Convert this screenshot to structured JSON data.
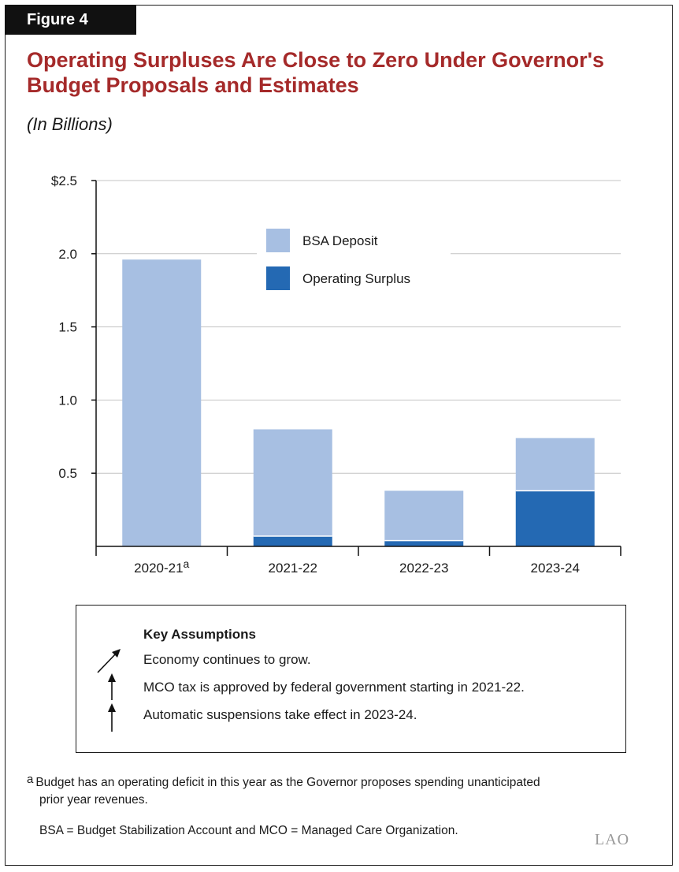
{
  "figure_label": "Figure 4",
  "title": "Operating Surpluses Are Close to Zero Under Governor's Budget Proposals and Estimates",
  "subtitle": "(In Billions)",
  "chart_data": {
    "type": "bar",
    "stacked": true,
    "categories": [
      "2020-21",
      "2021-22",
      "2022-23",
      "2023-24"
    ],
    "category_footnotes": [
      "a",
      "",
      "",
      ""
    ],
    "series": [
      {
        "name": "Operating Surplus",
        "color": "#2469b3",
        "values": [
          0,
          0.07,
          0.04,
          0.38
        ]
      },
      {
        "name": "BSA Deposit",
        "color": "#a7bfe2",
        "values": [
          1.96,
          0.73,
          0.34,
          0.36
        ]
      }
    ],
    "y_ticks": [
      "$2.5",
      "2.0",
      "1.5",
      "1.0",
      "0.5"
    ],
    "y_tick_values": [
      2.5,
      2.0,
      1.5,
      1.0,
      0.5
    ],
    "ylim": [
      0,
      2.5
    ],
    "grid": true,
    "legend_order": [
      "BSA Deposit",
      "Operating Surplus"
    ],
    "legend_position": "top-center"
  },
  "assumptions": {
    "title": "Key Assumptions",
    "items": [
      {
        "icon": "arrow-up-right-icon",
        "text": "Economy continues to grow."
      },
      {
        "icon": "arrow-up-icon",
        "text": "MCO tax is approved by federal government starting in 2021-22."
      },
      {
        "icon": "arrow-up-icon",
        "text": "Automatic suspensions take effect in 2023-24."
      }
    ]
  },
  "footnote": {
    "marker": "a",
    "line1": "Budget has an operating deficit in this year as the Governor proposes spending unanticipated",
    "line2": "prior year revenues."
  },
  "abbreviations": "BSA = Budget Stabilization Account and MCO = Managed Care Organization.",
  "logo": "LAO"
}
